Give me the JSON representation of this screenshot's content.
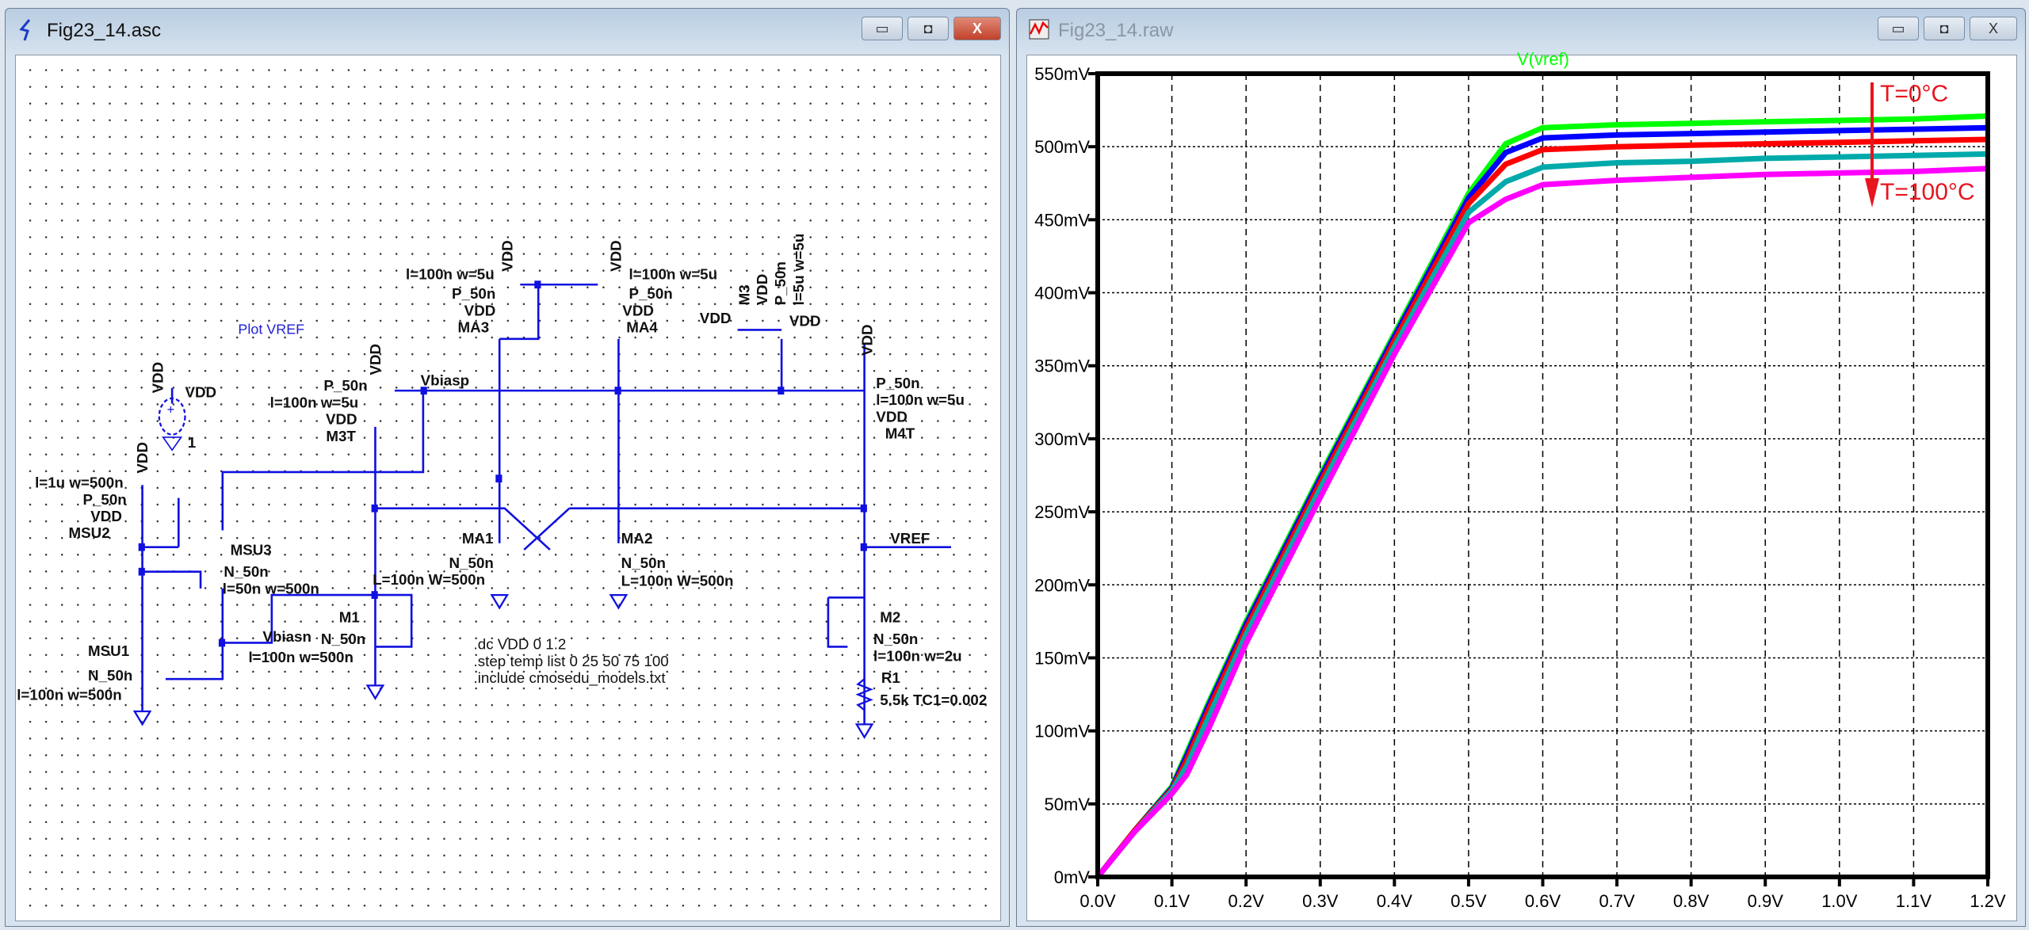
{
  "schematic_window": {
    "title": "Fig23_14.asc",
    "controls": {
      "minimize": "▭",
      "restore": "◘",
      "close": "X"
    },
    "plot_directive": "Plot VREF",
    "labels": {
      "ma3_size": "l=100n w=5u",
      "ma3_model": "P_50n",
      "ma3_body": "VDD",
      "ma3_name": "MA3",
      "ma3_supply": "VDD",
      "ma4_size": "l=100n w=5u",
      "ma4_model": "P_50n",
      "ma4_body": "VDD",
      "ma4_name": "MA4",
      "ma4_supply": "VDD",
      "m3_name": "M3",
      "m3_supply": "VDD",
      "m3_model": "P_50n",
      "m3_size": "l=5u w=5u",
      "m3_left": "VDD",
      "m3_right": "VDD",
      "m3t_supply": "VDD",
      "m3t_model": "P_50n",
      "m3t_size": "l=100n w=5u",
      "m3t_body": "VDD",
      "m3t_name": "M3T",
      "vbiasp": "Vbiasp",
      "m4t_supply": "VDD",
      "m4t_model": "P_50n",
      "m4t_size": "l=100n w=5u",
      "m4t_body": "VDD",
      "m4t_name": "M4T",
      "vsrc_node": "VDD",
      "vsrc_name": "VDD",
      "vsrc_value": "1",
      "msu2_supply": "VDD",
      "msu2_size": "l=1u w=500n",
      "msu2_model": "P_50n",
      "msu2_body": "VDD",
      "msu2_name": "MSU2",
      "msu3_name": "MSU3",
      "msu3_model": "N_50n",
      "msu3_size": "l=50n w=500n",
      "vbiasn": "Vbiasn",
      "m1_size": "l=100n w=500n",
      "m1_name": "M1",
      "m1_model": "N_50n",
      "m1_top_size": "L=100n W=500n",
      "ma1_name": "MA1",
      "ma1_model": "N_50n",
      "ma2_name": "MA2",
      "ma2_model": "N_50n",
      "ma2_size": "L=100n W=500n",
      "vref": "VREF",
      "m2_name": "M2",
      "m2_model": "N_50n",
      "m2_size": "l=100n w=2u",
      "r1_name": "R1",
      "r1_value": "5.5k TC1=0.002",
      "msu1_name": "MSU1",
      "msu1_model": "N_50n",
      "msu1_size": "l=100n w=500n"
    },
    "directives": [
      ".dc VDD 0 1.2",
      ".step temp list 0 25 50 75 100",
      ".include cmosedu_models.txt"
    ]
  },
  "plot_window": {
    "title": "Fig23_14.raw",
    "controls": {
      "minimize": "▭",
      "restore": "◘",
      "close": "X"
    },
    "annotation_top": "T=0°C",
    "annotation_bottom": "T=100°C",
    "annotation_color": "#e8141e"
  },
  "chart_data": {
    "type": "line",
    "title": "V(vref)",
    "title_color": "#00ff00",
    "xlim": [
      0,
      1.2
    ],
    "ylim": [
      0,
      0.55
    ],
    "x_ticks": [
      "0.0V",
      "0.1V",
      "0.2V",
      "0.3V",
      "0.4V",
      "0.5V",
      "0.6V",
      "0.7V",
      "0.8V",
      "0.9V",
      "1.0V",
      "1.1V",
      "1.2V"
    ],
    "y_ticks": [
      "0mV",
      "50mV",
      "100mV",
      "150mV",
      "200mV",
      "250mV",
      "300mV",
      "350mV",
      "400mV",
      "450mV",
      "500mV",
      "550mV"
    ],
    "grid": true,
    "x": [
      0,
      0.05,
      0.1,
      0.12,
      0.15,
      0.2,
      0.3,
      0.4,
      0.5,
      0.55,
      0.6,
      0.7,
      0.8,
      0.9,
      1.0,
      1.1,
      1.2
    ],
    "series": [
      {
        "color": "#00ff00",
        "values": [
          0,
          0.032,
          0.062,
          0.085,
          0.12,
          0.175,
          0.275,
          0.372,
          0.468,
          0.502,
          0.513,
          0.515,
          0.516,
          0.517,
          0.518,
          0.519,
          0.521
        ]
      },
      {
        "color": "#0000ff",
        "values": [
          0,
          0.032,
          0.061,
          0.083,
          0.118,
          0.173,
          0.273,
          0.37,
          0.465,
          0.496,
          0.506,
          0.508,
          0.509,
          0.51,
          0.511,
          0.512,
          0.513
        ]
      },
      {
        "color": "#ff0000",
        "values": [
          0,
          0.032,
          0.06,
          0.08,
          0.115,
          0.17,
          0.27,
          0.367,
          0.461,
          0.488,
          0.498,
          0.5,
          0.501,
          0.502,
          0.503,
          0.504,
          0.505
        ]
      },
      {
        "color": "#00aaaa",
        "values": [
          0,
          0.031,
          0.059,
          0.076,
          0.11,
          0.166,
          0.266,
          0.363,
          0.455,
          0.476,
          0.486,
          0.489,
          0.49,
          0.492,
          0.493,
          0.494,
          0.495
        ]
      },
      {
        "color": "#ff00ff",
        "values": [
          0,
          0.031,
          0.057,
          0.07,
          0.102,
          0.16,
          0.26,
          0.358,
          0.448,
          0.464,
          0.474,
          0.477,
          0.479,
          0.481,
          0.482,
          0.483,
          0.485
        ]
      }
    ]
  }
}
